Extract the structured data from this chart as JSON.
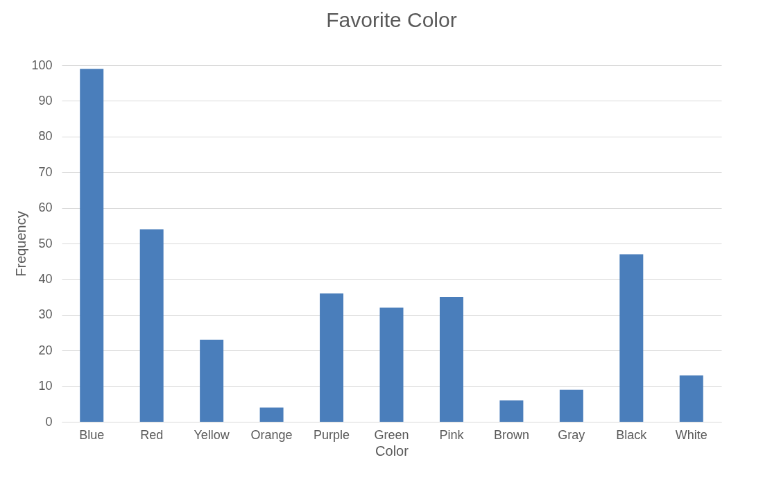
{
  "chart_data": {
    "type": "bar",
    "title": "Favorite Color",
    "xlabel": "Color",
    "ylabel": "Frequency",
    "categories": [
      "Blue",
      "Red",
      "Yellow",
      "Orange",
      "Purple",
      "Green",
      "Pink",
      "Brown",
      "Gray",
      "Black",
      "White"
    ],
    "values": [
      99,
      54,
      23,
      4,
      36,
      32,
      35,
      6,
      9,
      47,
      13
    ],
    "color": "#4a7ebb",
    "ylim": [
      0,
      100
    ],
    "yticks": [
      0,
      10,
      20,
      30,
      40,
      50,
      60,
      70,
      80,
      90,
      100
    ],
    "grid": "y"
  }
}
